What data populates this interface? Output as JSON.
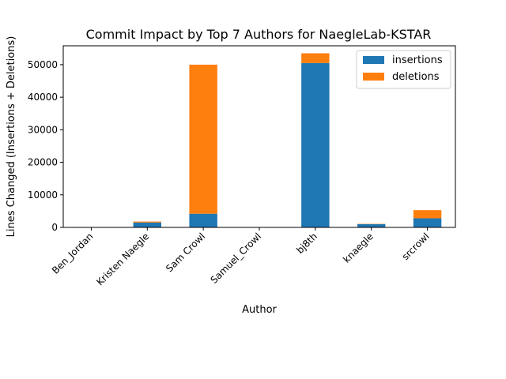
{
  "chart_data": {
    "type": "bar",
    "stacked": true,
    "title": "Commit Impact by Top 7 Authors for NaegleLab-KSTAR",
    "xlabel": "Author",
    "ylabel": "Lines Changed (Insertions + Deletions)",
    "categories": [
      "Ben_Jordan",
      "Kristen Naegle",
      "Sam Crowl",
      "Samuel_Crowl",
      "bj8th",
      "knaegle",
      "srcrowl"
    ],
    "series": [
      {
        "name": "insertions",
        "color": "#1f77b4",
        "values": [
          30,
          1500,
          4200,
          20,
          50500,
          1000,
          2800
        ]
      },
      {
        "name": "deletions",
        "color": "#ff7f0e",
        "values": [
          10,
          300,
          45800,
          10,
          3000,
          100,
          2500
        ]
      }
    ],
    "ylim": [
      0,
      55800
    ],
    "yticks": [
      0,
      10000,
      20000,
      30000,
      40000,
      50000
    ],
    "ytick_labels": [
      "0",
      "10000",
      "20000",
      "30000",
      "40000",
      "50000"
    ],
    "legend_position": "top-right",
    "grid": false
  }
}
